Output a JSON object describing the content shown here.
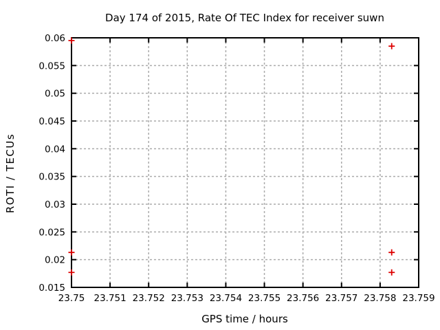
{
  "chart_data": {
    "type": "scatter",
    "title": "Day 174 of 2015, Rate Of TEC Index for receiver suwn",
    "xlabel": "GPS time / hours",
    "ylabel": "ROTI / TECUs",
    "xlim": [
      23.75,
      23.759
    ],
    "ylim": [
      0.015,
      0.06
    ],
    "xticks": [
      23.75,
      23.751,
      23.752,
      23.753,
      23.754,
      23.755,
      23.756,
      23.757,
      23.758,
      23.759
    ],
    "xtick_labels": [
      "23.75",
      "23.751",
      "23.752",
      "23.753",
      "23.754",
      "23.755",
      "23.756",
      "23.757",
      "23.758",
      "23.759"
    ],
    "yticks": [
      0.015,
      0.02,
      0.025,
      0.03,
      0.035,
      0.04,
      0.045,
      0.05,
      0.055,
      0.06
    ],
    "ytick_labels": [
      "0.015",
      "0.02",
      "0.025",
      "0.03",
      "0.035",
      "0.04",
      "0.045",
      "0.05",
      "0.055",
      "0.06"
    ],
    "grid": true,
    "legend_position": "none",
    "marker": "plus",
    "series": [
      {
        "name": "ROTI",
        "color": "#dd0000",
        "points": [
          {
            "x": 23.75,
            "y": 0.0595
          },
          {
            "x": 23.75,
            "y": 0.0213
          },
          {
            "x": 23.75,
            "y": 0.0177
          },
          {
            "x": 23.7583,
            "y": 0.0585
          },
          {
            "x": 23.7583,
            "y": 0.0213
          },
          {
            "x": 23.7583,
            "y": 0.0177
          }
        ]
      }
    ],
    "colors": {
      "background": "#ffffff",
      "axis": "#000000",
      "grid": "#aaaaaa",
      "text": "#000000",
      "marker": "#dd0000"
    }
  }
}
